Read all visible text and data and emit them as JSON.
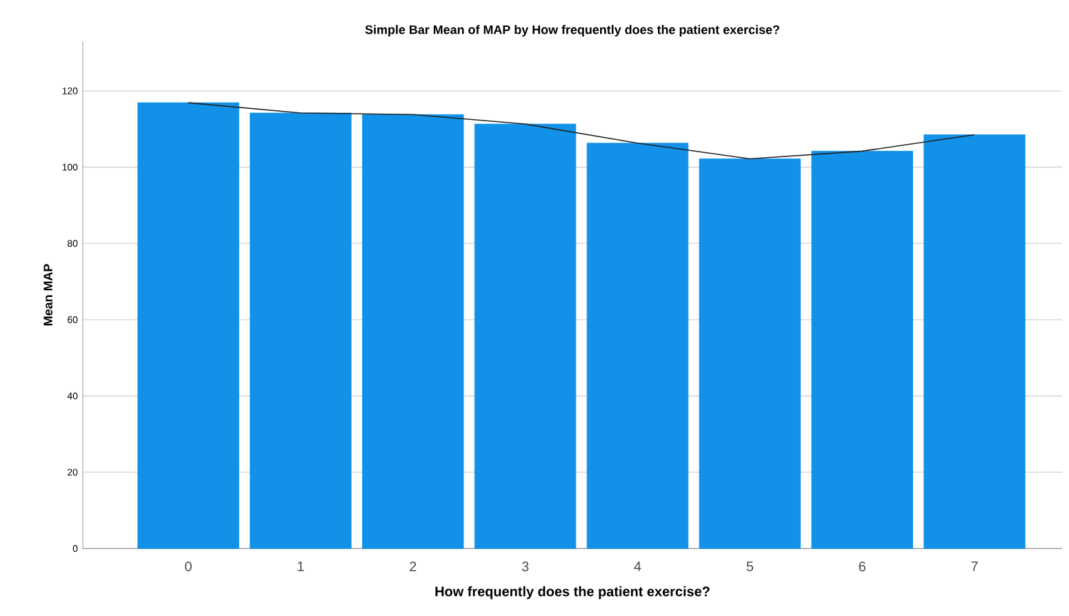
{
  "chart_data": {
    "type": "bar",
    "title": "Simple Bar Mean of MAP  by How frequently does the patient exercise?",
    "xlabel": "How frequently does the patient exercise?",
    "ylabel": "Mean MAP",
    "categories": [
      "0",
      "1",
      "2",
      "3",
      "4",
      "5",
      "6",
      "7"
    ],
    "series": [
      {
        "color": "#1192e8",
        "values": [
          116.9,
          114.2,
          113.8,
          111.3,
          106.3,
          102.2,
          104.2,
          108.5
        ]
      },
      {
        "type": "line",
        "color": "#222222",
        "values": [
          116.9,
          114.2,
          113.8,
          111.3,
          106.3,
          102.2,
          104.2,
          108.5
        ]
      }
    ],
    "ylim": [
      0,
      133
    ],
    "yticks": [
      0,
      20,
      40,
      60,
      80,
      100,
      120
    ],
    "grid": "y",
    "marker": "none",
    "line_style": "solid"
  }
}
